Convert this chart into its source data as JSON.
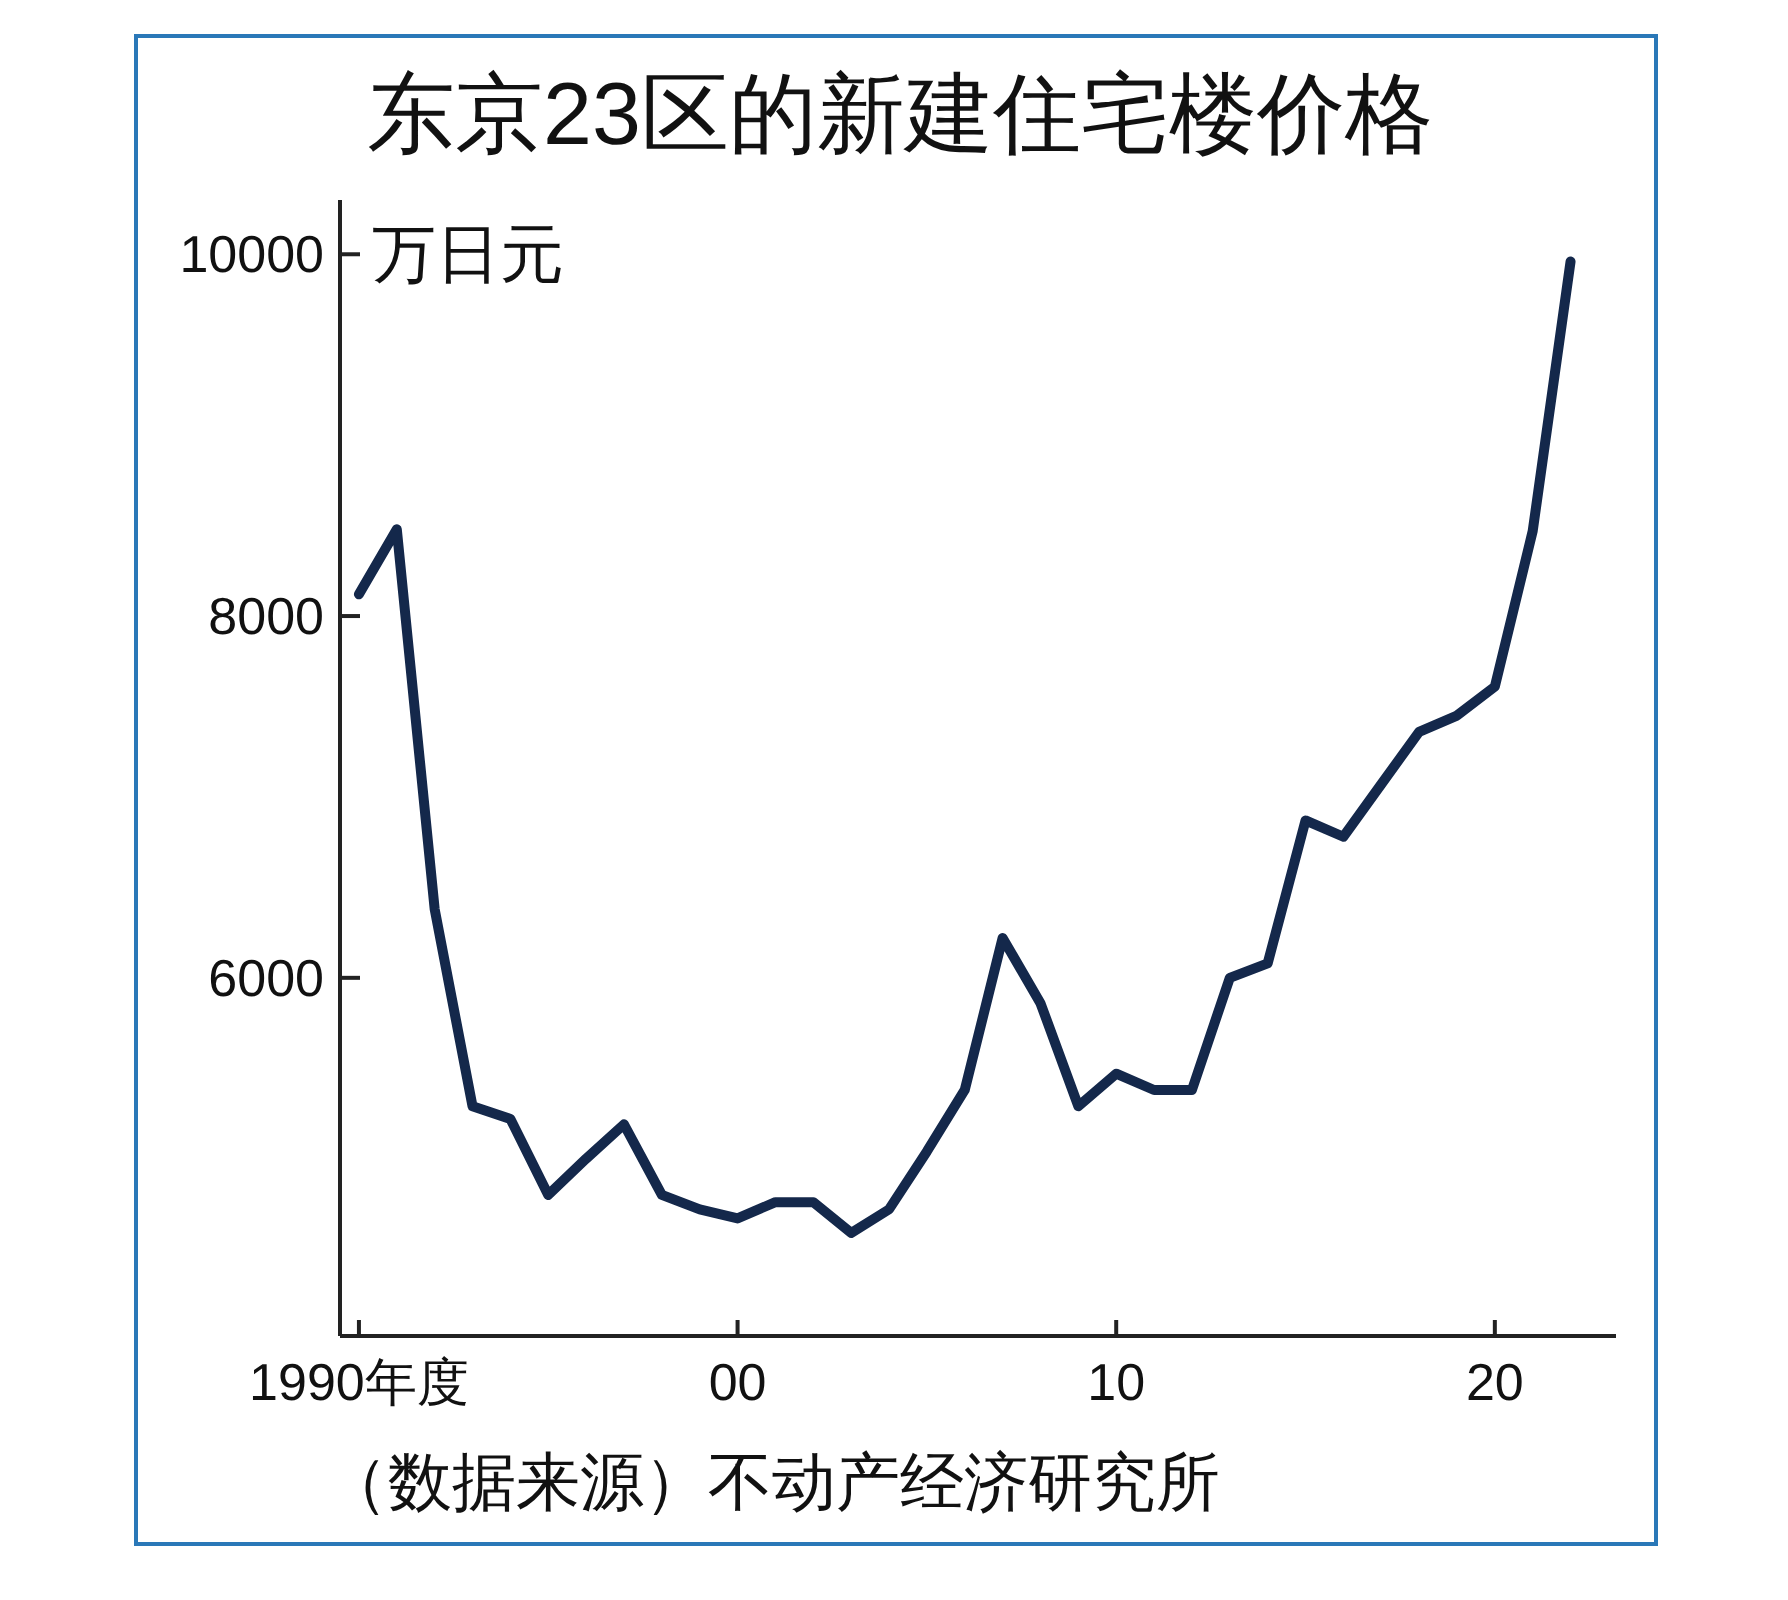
{
  "chart_data": {
    "type": "line",
    "title": "东京23区的新建住宅楼价格",
    "ylabel": "万日元",
    "annotations": [
      "（数据来源）不动产经济研究所"
    ],
    "x": [
      1990,
      1991,
      1992,
      1993,
      1994,
      1995,
      1996,
      1997,
      1998,
      1999,
      2000,
      2001,
      2002,
      2003,
      2004,
      2005,
      2006,
      2007,
      2008,
      2009,
      2010,
      2011,
      2012,
      2013,
      2014,
      2015,
      2016,
      2017,
      2018,
      2019,
      2020,
      2021,
      2022
    ],
    "series": [
      {
        "color": "#14284b",
        "values": [
          8120,
          8480,
          6380,
          5290,
          5220,
          4800,
          5000,
          5190,
          4800,
          4720,
          4670,
          4760,
          4760,
          4590,
          4720,
          5040,
          5380,
          6220,
          5860,
          5290,
          5470,
          5380,
          5380,
          6000,
          6080,
          6870,
          6780,
          7070,
          7360,
          7450,
          7610,
          8470,
          9960
        ]
      }
    ],
    "xlim": [
      1989.5,
      2023.2
    ],
    "ylim": [
      4020,
      10300
    ],
    "xticks": [
      {
        "value": 1990,
        "label": "1990年度"
      },
      {
        "value": 2000,
        "label": "00"
      },
      {
        "value": 2010,
        "label": "10"
      },
      {
        "value": 2020,
        "label": "20"
      }
    ],
    "yticks": [
      6000,
      8000,
      10000
    ],
    "grid": false,
    "marker": "none",
    "line_style": "solid"
  }
}
